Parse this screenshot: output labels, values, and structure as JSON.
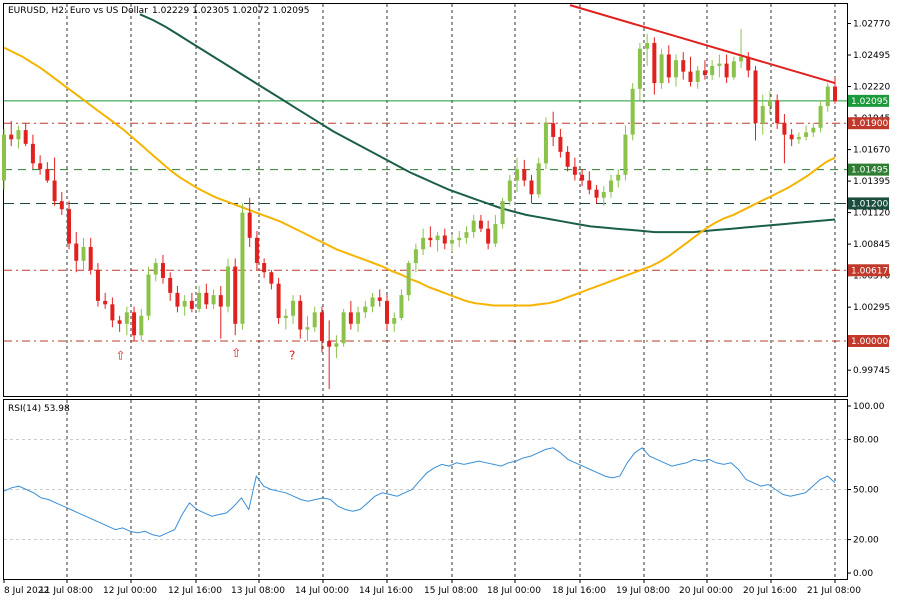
{
  "header": {
    "symbol": "EURUSD, H2:  Euro vs US Dollar",
    "ohlc": "1.02229 1.02305 1.02072 1.02095"
  },
  "rsi_title": "RSI(14) 53.98",
  "colors": {
    "bull": "#8bc34a",
    "bear": "#e0211f",
    "ma_fast": "#f4b400",
    "ma_slow": "#1b5e4a",
    "trend": "#e0211f",
    "rsi": "#3a8fd6",
    "price_line": "#1a9a3a",
    "level_red": "#c0392b",
    "level_green": "#2e7d32",
    "level_dark": "#1b4d3e"
  },
  "chart_data": {
    "type": "candlestick",
    "price_axis": {
      "ylim": [
        0.9952,
        1.0294
      ],
      "ticks": [
        "1.02770",
        "1.02495",
        "1.02220",
        "1.01945",
        "1.01670",
        "1.01395",
        "1.01120",
        "1.00845",
        "1.00570",
        "1.00295",
        "1.00020",
        "0.99745"
      ]
    },
    "time_axis": {
      "labels": [
        "8 Jul 2022",
        "11 Jul 08:00",
        "12 Jul 00:00",
        "12 Jul 16:00",
        "13 Jul 08:00",
        "14 Jul 00:00",
        "14 Jul 16:00",
        "15 Jul 08:00",
        "18 Jul 00:00",
        "18 Jul 16:00",
        "19 Jul 08:00",
        "20 Jul 00:00",
        "20 Jul 16:00",
        "21 Jul 08:00"
      ]
    },
    "candles": [
      [
        1.014,
        1.0185,
        1.0132,
        1.018
      ],
      [
        1.018,
        1.0192,
        1.017,
        1.0176
      ],
      [
        1.0176,
        1.0188,
        1.0168,
        1.0184
      ],
      [
        1.0184,
        1.019,
        1.017,
        1.0172
      ],
      [
        1.0172,
        1.018,
        1.015,
        1.0155
      ],
      [
        1.0155,
        1.0162,
        1.0145,
        1.015
      ],
      [
        1.015,
        1.0156,
        1.0138,
        1.014
      ],
      [
        1.014,
        1.016,
        1.0118,
        1.0122
      ],
      [
        1.0122,
        1.013,
        1.011,
        1.0115
      ],
      [
        1.0115,
        1.0122,
        1.008,
        1.0085
      ],
      [
        1.0085,
        1.0095,
        1.006,
        1.007
      ],
      [
        1.007,
        1.009,
        1.0062,
        1.0082
      ],
      [
        1.0082,
        1.009,
        1.0058,
        1.0062
      ],
      [
        1.0062,
        1.0068,
        1.003,
        1.0035
      ],
      [
        1.0035,
        1.0042,
        1.0028,
        1.0032
      ],
      [
        1.0032,
        1.0038,
        1.0012,
        1.0018
      ],
      [
        1.0018,
        1.0022,
        1.0008,
        1.0015
      ],
      [
        1.0015,
        1.003,
        1.0005,
        1.0025
      ],
      [
        1.0025,
        1.003,
        1.0,
        1.0005
      ],
      [
        1.0005,
        1.0028,
        1.0,
        1.0022
      ],
      [
        1.0022,
        1.0065,
        1.0018,
        1.0058
      ],
      [
        1.0058,
        1.0072,
        1.0052,
        1.0068
      ],
      [
        1.0068,
        1.0075,
        1.005,
        1.0055
      ],
      [
        1.0055,
        1.006,
        1.0035,
        1.0042
      ],
      [
        1.0042,
        1.0048,
        1.0025,
        1.003
      ],
      [
        1.003,
        1.004,
        1.0022,
        1.0035
      ],
      [
        1.0035,
        1.0042,
        1.0025,
        1.0028
      ],
      [
        1.0028,
        1.0048,
        1.0025,
        1.0042
      ],
      [
        1.0042,
        1.005,
        1.0028,
        1.0032
      ],
      [
        1.0032,
        1.0045,
        1.0028,
        1.004
      ],
      [
        1.004,
        1.0048,
        1.0002,
        1.003
      ],
      [
        1.003,
        1.0072,
        1.0025,
        1.0065
      ],
      [
        1.0065,
        1.0072,
        1.0005,
        1.0015
      ],
      [
        1.0015,
        1.012,
        1.001,
        1.0112
      ],
      [
        1.0112,
        1.0125,
        1.0082,
        1.009
      ],
      [
        1.009,
        1.0096,
        1.0062,
        1.0068
      ],
      [
        1.0068,
        1.0072,
        1.0055,
        1.006
      ],
      [
        1.006,
        1.0062,
        1.0045,
        1.005
      ],
      [
        1.005,
        1.0055,
        1.0015,
        1.002
      ],
      [
        1.002,
        1.0028,
        1.001,
        1.0022
      ],
      [
        1.0022,
        1.004,
        1.0015,
        1.0035
      ],
      [
        1.0035,
        1.004,
        1.0002,
        1.001
      ],
      [
        1.001,
        1.0022,
        1.0,
        1.0012
      ],
      [
        1.0012,
        1.003,
        1.0008,
        1.0025
      ],
      [
        1.0025,
        1.003,
        0.999,
        1.0
      ],
      [
        1.0,
        1.0018,
        0.9958,
        0.9995
      ],
      [
        0.9995,
        1.0005,
        0.9985,
        0.9998
      ],
      [
        0.9998,
        1.0028,
        0.9995,
        1.0025
      ],
      [
        1.0025,
        1.0035,
        1.001,
        1.0015
      ],
      [
        1.0015,
        1.003,
        1.0008,
        1.0025
      ],
      [
        1.0025,
        1.0035,
        1.002,
        1.003
      ],
      [
        1.003,
        1.0042,
        1.0025,
        1.0038
      ],
      [
        1.0038,
        1.0045,
        1.003,
        1.0035
      ],
      [
        1.0035,
        1.004,
        1.001,
        1.0015
      ],
      [
        1.0015,
        1.0025,
        1.0008,
        1.002
      ],
      [
        1.002,
        1.0045,
        1.0018,
        1.004
      ],
      [
        1.004,
        1.007,
        1.0035,
        1.0068
      ],
      [
        1.0068,
        1.0085,
        1.006,
        1.008
      ],
      [
        1.008,
        1.0098,
        1.0075,
        1.009
      ],
      [
        1.009,
        1.01,
        1.0082,
        1.0088
      ],
      [
        1.0088,
        1.0095,
        1.0078,
        1.0092
      ],
      [
        1.0092,
        1.0098,
        1.008,
        1.0085
      ],
      [
        1.0085,
        1.0092,
        1.0078,
        1.0088
      ],
      [
        1.0088,
        1.0096,
        1.0082,
        1.009
      ],
      [
        1.009,
        1.01,
        1.0085,
        1.0095
      ],
      [
        1.0095,
        1.011,
        1.009,
        1.0105
      ],
      [
        1.0105,
        1.011,
        1.0095,
        1.0098
      ],
      [
        1.0098,
        1.0105,
        1.008,
        1.0085
      ],
      [
        1.0085,
        1.011,
        1.0082,
        1.0102
      ],
      [
        1.0102,
        1.0125,
        1.0098,
        1.0122
      ],
      [
        1.0122,
        1.0145,
        1.0118,
        1.014
      ],
      [
        1.014,
        1.016,
        1.013,
        1.015
      ],
      [
        1.015,
        1.0158,
        1.0135,
        1.014
      ],
      [
        1.014,
        1.0145,
        1.012,
        1.0128
      ],
      [
        1.0128,
        1.016,
        1.0125,
        1.0155
      ],
      [
        1.0155,
        1.0195,
        1.015,
        1.019
      ],
      [
        1.019,
        1.02,
        1.017,
        1.0178
      ],
      [
        1.0178,
        1.0185,
        1.016,
        1.0165
      ],
      [
        1.0165,
        1.017,
        1.0148,
        1.0152
      ],
      [
        1.0152,
        1.016,
        1.014,
        1.0145
      ],
      [
        1.0145,
        1.015,
        1.0135,
        1.014
      ],
      [
        1.014,
        1.0148,
        1.0128,
        1.0132
      ],
      [
        1.0132,
        1.0136,
        1.012,
        1.0125
      ],
      [
        1.0125,
        1.0135,
        1.0118,
        1.013
      ],
      [
        1.013,
        1.0145,
        1.0125,
        1.014
      ],
      [
        1.014,
        1.015,
        1.0134,
        1.0145
      ],
      [
        1.0145,
        1.0188,
        1.014,
        1.018
      ],
      [
        1.018,
        1.0225,
        1.0175,
        1.022
      ],
      [
        1.022,
        1.026,
        1.021,
        1.0255
      ],
      [
        1.0255,
        1.0268,
        1.024,
        1.026
      ],
      [
        1.026,
        1.0265,
        1.0215,
        1.0225
      ],
      [
        1.0225,
        1.0255,
        1.022,
        1.025
      ],
      [
        1.025,
        1.0258,
        1.0225,
        1.023
      ],
      [
        1.023,
        1.025,
        1.0222,
        1.0245
      ],
      [
        1.0245,
        1.0252,
        1.0228,
        1.0235
      ],
      [
        1.0235,
        1.0248,
        1.0222,
        1.0226
      ],
      [
        1.0226,
        1.024,
        1.022,
        1.0236
      ],
      [
        1.0236,
        1.0245,
        1.0228,
        1.0232
      ],
      [
        1.0232,
        1.0245,
        1.0228,
        1.024
      ],
      [
        1.024,
        1.025,
        1.023,
        1.0242
      ],
      [
        1.0242,
        1.025,
        1.0225,
        1.023
      ],
      [
        1.023,
        1.0248,
        1.0228,
        1.0244
      ],
      [
        1.0244,
        1.0272,
        1.0238,
        1.0248
      ],
      [
        1.0248,
        1.0252,
        1.023,
        1.0236
      ],
      [
        1.0236,
        1.024,
        1.0175,
        1.019
      ],
      [
        1.019,
        1.0215,
        1.018,
        1.0205
      ],
      [
        1.0205,
        1.0218,
        1.0198,
        1.021
      ],
      [
        1.021,
        1.0215,
        1.0185,
        1.019
      ],
      [
        1.019,
        1.0198,
        1.0155,
        1.018
      ],
      [
        1.018,
        1.0185,
        1.017,
        1.0176
      ],
      [
        1.0176,
        1.0182,
        1.0172,
        1.0178
      ],
      [
        1.0178,
        1.0188,
        1.0175,
        1.0182
      ],
      [
        1.0182,
        1.019,
        1.0178,
        1.0186
      ],
      [
        1.0186,
        1.021,
        1.0182,
        1.0205
      ],
      [
        1.0205,
        1.0225,
        1.02,
        1.0222
      ],
      [
        1.0222,
        1.023,
        1.0207,
        1.0209
      ]
    ],
    "ma_fast_values": [
      1.0256,
      1.0252,
      1.0248,
      1.0243,
      1.0238,
      1.0232,
      1.0226,
      1.022,
      1.0214,
      1.0208,
      1.0202,
      1.0196,
      1.019,
      1.0184,
      1.0177,
      1.017,
      1.0163,
      1.0156,
      1.0149,
      1.0143,
      1.0138,
      1.0133,
      1.0129,
      1.0125,
      1.0122,
      1.0119,
      1.0116,
      1.0113,
      1.011,
      1.0107,
      1.0104,
      1.01,
      1.0096,
      1.0092,
      1.0088,
      1.0084,
      1.008,
      1.0077,
      1.0074,
      1.0071,
      1.0068,
      1.0065,
      1.0061,
      1.0058,
      1.0054,
      1.0051,
      1.0047,
      1.0044,
      1.0041,
      1.0038,
      1.0035,
      1.0033,
      1.0032,
      1.0031,
      1.0031,
      1.0031,
      1.0031,
      1.0031,
      1.0032,
      1.0033,
      1.0035,
      1.0038,
      1.0041,
      1.0044,
      1.0047,
      1.005,
      1.0053,
      1.0056,
      1.0059,
      1.0062,
      1.0065,
      1.0069,
      1.0074,
      1.008,
      1.0086,
      1.0092,
      1.0098,
      1.0103,
      1.0107,
      1.011,
      1.0114,
      1.0118,
      1.0122,
      1.0126,
      1.013,
      1.0134,
      1.0139,
      1.0144,
      1.015,
      1.0156,
      1.016
    ],
    "ma_slow_values": [
      1.0285,
      1.028,
      1.0274,
      1.0267,
      1.026,
      1.0253,
      1.0246,
      1.0239,
      1.0232,
      1.0225,
      1.0218,
      1.0211,
      1.0204,
      1.0197,
      1.019,
      1.0183,
      1.0177,
      1.0171,
      1.0165,
      1.0159,
      1.0153,
      1.0147,
      1.0142,
      1.0137,
      1.0132,
      1.0128,
      1.0124,
      1.012,
      1.0116,
      1.0113,
      1.011,
      1.0108,
      1.0106,
      1.0104,
      1.0102,
      1.01,
      1.0099,
      1.0098,
      1.0097,
      1.0096,
      1.0095,
      1.0095,
      1.0095,
      1.0095,
      1.0096,
      1.0097,
      1.0098,
      1.0099,
      1.01,
      1.0101,
      1.0102,
      1.0103,
      1.0104,
      1.0105,
      1.0106
    ],
    "trend_line": [
      [
        1.0293,
        0
      ],
      [
        1.0225,
        1
      ]
    ],
    "levels": [
      {
        "value": 1.019,
        "label": "1.01900",
        "style": "red"
      },
      {
        "value": 1.01495,
        "label": "1.01495",
        "style": "green"
      },
      {
        "value": 1.012,
        "label": "1.01200",
        "style": "dark"
      },
      {
        "value": 1.00617,
        "label": "1.00617",
        "style": "red"
      },
      {
        "value": 1.0,
        "label": "1.00000",
        "style": "red"
      }
    ],
    "current_price": {
      "value": 1.02095,
      "label": "1.02095"
    },
    "marks": [
      {
        "index": 16,
        "value": 0.9984,
        "text": "⇧"
      },
      {
        "index": 32,
        "value": 0.9986,
        "text": "⇧"
      },
      {
        "index": 40,
        "value": 0.9984,
        "text": "?"
      }
    ],
    "rsi": {
      "ylim": [
        0,
        100
      ],
      "ticks": [
        "100.00",
        "80.00",
        "50.00",
        "20.00",
        "0.00"
      ],
      "levels": [
        80,
        50,
        20
      ],
      "values": [
        49,
        51,
        52,
        50,
        48,
        45,
        44,
        42,
        40,
        38,
        36,
        34,
        32,
        30,
        28,
        26,
        27,
        25,
        24,
        25,
        23,
        22,
        24,
        26,
        35,
        42,
        38,
        36,
        34,
        35,
        36,
        40,
        45,
        38,
        58,
        52,
        50,
        49,
        48,
        46,
        44,
        43,
        44,
        45,
        44,
        40,
        38,
        37,
        38,
        42,
        46,
        48,
        47,
        46,
        48,
        50,
        55,
        60,
        63,
        65,
        64,
        66,
        65,
        66,
        67,
        66,
        65,
        64,
        66,
        67,
        69,
        70,
        72,
        74,
        75,
        72,
        68,
        66,
        64,
        62,
        60,
        58,
        57,
        58,
        66,
        72,
        75,
        70,
        68,
        66,
        64,
        65,
        66,
        68,
        67,
        68,
        66,
        65,
        66,
        62,
        56,
        54,
        52,
        53,
        50,
        47,
        46,
        47,
        48,
        52,
        56,
        58,
        54
      ]
    }
  }
}
